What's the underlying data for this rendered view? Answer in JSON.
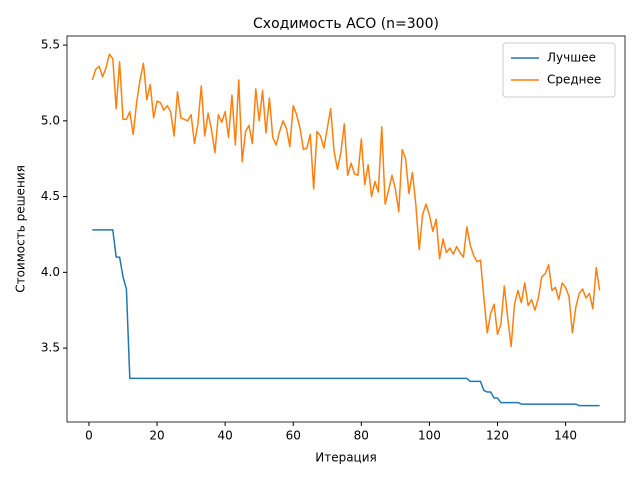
{
  "chart_data": {
    "type": "line",
    "title": "Сходимость ACO (n=300)",
    "x_label": "Итерация",
    "y_label": "Стоимость решения",
    "x": [
      1,
      2,
      3,
      4,
      5,
      6,
      7,
      8,
      9,
      10,
      11,
      12,
      13,
      14,
      15,
      16,
      17,
      18,
      19,
      20,
      21,
      22,
      23,
      24,
      25,
      26,
      27,
      28,
      29,
      30,
      31,
      32,
      33,
      34,
      35,
      36,
      37,
      38,
      39,
      40,
      41,
      42,
      43,
      44,
      45,
      46,
      47,
      48,
      49,
      50,
      51,
      52,
      53,
      54,
      55,
      56,
      57,
      58,
      59,
      60,
      61,
      62,
      63,
      64,
      65,
      66,
      67,
      68,
      69,
      70,
      71,
      72,
      73,
      74,
      75,
      76,
      77,
      78,
      79,
      80,
      81,
      82,
      83,
      84,
      85,
      86,
      87,
      88,
      89,
      90,
      91,
      92,
      93,
      94,
      95,
      96,
      97,
      98,
      99,
      100,
      101,
      102,
      103,
      104,
      105,
      106,
      107,
      108,
      109,
      110,
      111,
      112,
      113,
      114,
      115,
      116,
      117,
      118,
      119,
      120,
      121,
      122,
      123,
      124,
      125,
      126,
      127,
      128,
      129,
      130,
      131,
      132,
      133,
      134,
      135,
      136,
      137,
      138,
      139,
      140,
      141,
      142,
      143,
      144,
      145,
      146,
      147,
      148,
      149,
      150
    ],
    "series": [
      {
        "name": "Лучшее",
        "color": "#1f77b4",
        "values": [
          4.28,
          4.28,
          4.28,
          4.28,
          4.28,
          4.28,
          4.28,
          4.1,
          4.1,
          3.97,
          3.89,
          3.3,
          3.3,
          3.3,
          3.3,
          3.3,
          3.3,
          3.3,
          3.3,
          3.3,
          3.3,
          3.3,
          3.3,
          3.3,
          3.3,
          3.3,
          3.3,
          3.3,
          3.3,
          3.3,
          3.3,
          3.3,
          3.3,
          3.3,
          3.3,
          3.3,
          3.3,
          3.3,
          3.3,
          3.3,
          3.3,
          3.3,
          3.3,
          3.3,
          3.3,
          3.3,
          3.3,
          3.3,
          3.3,
          3.3,
          3.3,
          3.3,
          3.3,
          3.3,
          3.3,
          3.3,
          3.3,
          3.3,
          3.3,
          3.3,
          3.3,
          3.3,
          3.3,
          3.3,
          3.3,
          3.3,
          3.3,
          3.3,
          3.3,
          3.3,
          3.3,
          3.3,
          3.3,
          3.3,
          3.3,
          3.3,
          3.3,
          3.3,
          3.3,
          3.3,
          3.3,
          3.3,
          3.3,
          3.3,
          3.3,
          3.3,
          3.3,
          3.3,
          3.3,
          3.3,
          3.3,
          3.3,
          3.3,
          3.3,
          3.3,
          3.3,
          3.3,
          3.3,
          3.3,
          3.3,
          3.3,
          3.3,
          3.3,
          3.3,
          3.3,
          3.3,
          3.3,
          3.3,
          3.3,
          3.3,
          3.3,
          3.28,
          3.28,
          3.28,
          3.28,
          3.22,
          3.21,
          3.21,
          3.17,
          3.17,
          3.14,
          3.14,
          3.14,
          3.14,
          3.14,
          3.14,
          3.13,
          3.13,
          3.13,
          3.13,
          3.13,
          3.13,
          3.13,
          3.13,
          3.13,
          3.13,
          3.13,
          3.13,
          3.13,
          3.13,
          3.13,
          3.13,
          3.13,
          3.12,
          3.12,
          3.12,
          3.12,
          3.12,
          3.12,
          3.12
        ]
      },
      {
        "name": "Среднее",
        "color": "#ff7f0e",
        "values": [
          5.27,
          5.34,
          5.36,
          5.29,
          5.35,
          5.44,
          5.41,
          5.08,
          5.39,
          5.01,
          5.01,
          5.06,
          4.91,
          5.12,
          5.27,
          5.38,
          5.14,
          5.24,
          5.02,
          5.13,
          5.12,
          5.07,
          5.1,
          5.06,
          4.9,
          5.19,
          5.02,
          5.01,
          5.0,
          5.04,
          4.85,
          4.98,
          5.23,
          4.9,
          5.05,
          4.94,
          4.79,
          5.04,
          4.99,
          5.06,
          4.89,
          5.17,
          4.84,
          5.27,
          4.73,
          4.93,
          4.97,
          4.85,
          5.21,
          5.0,
          5.2,
          4.92,
          5.15,
          4.89,
          4.84,
          4.93,
          5.0,
          4.95,
          4.83,
          5.1,
          5.04,
          4.95,
          4.81,
          4.82,
          4.91,
          4.55,
          4.93,
          4.9,
          4.82,
          4.95,
          5.08,
          4.8,
          4.68,
          4.79,
          4.98,
          4.64,
          4.72,
          4.65,
          4.64,
          4.88,
          4.58,
          4.71,
          4.5,
          4.6,
          4.53,
          4.96,
          4.45,
          4.54,
          4.64,
          4.55,
          4.4,
          4.81,
          4.75,
          4.52,
          4.66,
          4.45,
          4.15,
          4.38,
          4.45,
          4.38,
          4.27,
          4.35,
          4.09,
          4.22,
          4.13,
          4.16,
          4.12,
          4.17,
          4.13,
          4.1,
          4.3,
          4.18,
          4.11,
          4.07,
          4.08,
          3.83,
          3.6,
          3.73,
          3.79,
          3.59,
          3.66,
          3.91,
          3.7,
          3.51,
          3.79,
          3.88,
          3.8,
          3.93,
          3.78,
          3.82,
          3.75,
          3.83,
          3.97,
          3.99,
          4.05,
          3.88,
          3.9,
          3.82,
          3.93,
          3.9,
          3.84,
          3.6,
          3.77,
          3.86,
          3.89,
          3.83,
          3.86,
          3.76,
          4.03,
          3.88
        ]
      }
    ],
    "xlim": [
      -6.45,
      157.45
    ],
    "ylim": [
      3.012,
      5.56
    ],
    "xticks": [
      0,
      20,
      40,
      60,
      80,
      100,
      120,
      140
    ],
    "yticks": [
      3.5,
      {
        "value": 4.0,
        "label": "4.0"
      },
      4.5,
      {
        "value": 5.0,
        "label": "5.0"
      },
      5.5
    ],
    "legend": "upper right",
    "grid": false
  }
}
